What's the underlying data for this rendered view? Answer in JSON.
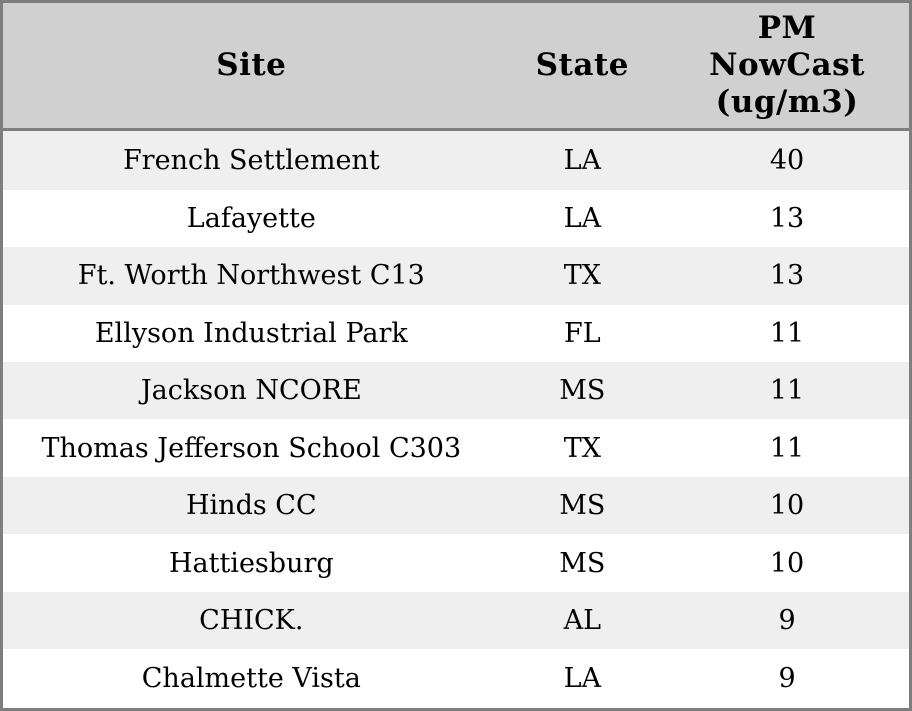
{
  "colors": {
    "border": "#7e7e7e",
    "header_background": "#d0d0d0",
    "row_stripe": "#efefef",
    "row_plain": "#ffffff",
    "text": "#000000"
  },
  "table": {
    "columns": [
      {
        "key": "site",
        "label": "Site"
      },
      {
        "key": "state",
        "label": "State"
      },
      {
        "key": "pm",
        "label": "PM NowCast (ug/m3)"
      }
    ]
  },
  "chart_data": {
    "type": "table",
    "title": "",
    "columns": [
      "Site",
      "State",
      "PM NowCast (ug/m3)"
    ],
    "rows": [
      [
        "French Settlement",
        "LA",
        40
      ],
      [
        "Lafayette",
        "LA",
        13
      ],
      [
        "Ft. Worth Northwest C13",
        "TX",
        13
      ],
      [
        "Ellyson Industrial Park",
        "FL",
        11
      ],
      [
        "Jackson NCORE",
        "MS",
        11
      ],
      [
        "Thomas Jefferson School C303",
        "TX",
        11
      ],
      [
        "Hinds CC",
        "MS",
        10
      ],
      [
        "Hattiesburg",
        "MS",
        10
      ],
      [
        "CHICK.",
        "AL",
        9
      ],
      [
        "Chalmette Vista",
        "LA",
        9
      ]
    ],
    "layout_hints": {
      "striped": true,
      "stripe_starts_on_first_row": true,
      "all_text_centered": true,
      "header_wraps_third_column": [
        "PM",
        "NowCast",
        "(ug/m3)"
      ]
    }
  }
}
